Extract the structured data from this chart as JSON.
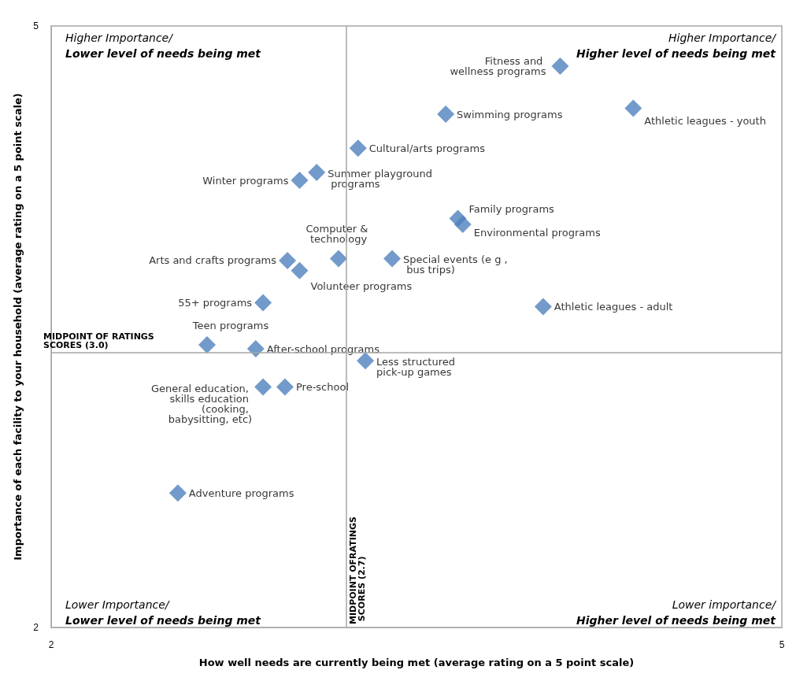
{
  "chart_data": {
    "type": "scatter",
    "xlabel": "How well needs are currently being met (average rating on a 5 point scale)",
    "ylabel": "Importance of each facility to your household (average rating on a 5 point scale)",
    "xlim": [
      2,
      5
    ],
    "xticks": [
      2,
      5
    ],
    "ylim": [
      2,
      5
    ],
    "yticks": [
      2,
      5
    ],
    "grid": false,
    "marker": "diamond",
    "color": "#4f81bd",
    "x": [
      4.09,
      3.62,
      4.39,
      3.26,
      3.09,
      3.02,
      3.67,
      3.69,
      3.18,
      3.4,
      2.97,
      3.02,
      2.87,
      4.02,
      2.64,
      2.84,
      3.29,
      2.87,
      2.96,
      2.52
    ],
    "values": [
      4.8,
      4.56,
      4.59,
      4.39,
      4.27,
      4.23,
      4.04,
      4.01,
      3.84,
      3.84,
      3.83,
      3.78,
      3.62,
      3.6,
      3.41,
      3.39,
      3.33,
      3.2,
      3.2,
      2.67
    ],
    "ref_lines": [
      {
        "axis": "x",
        "value": 3.21,
        "label": "MIDPOINT OFRATINGS SCORES (2.7)",
        "color": "#a6a6a6"
      },
      {
        "axis": "y",
        "value": 3.37,
        "label": "MIDPOINT OF RATINGS SCORES (3.0)",
        "color": "#a6a6a6"
      }
    ],
    "annotations": [
      "Higher Importance/\nLower level of needs being met",
      "Higher Importance/\nHigher level of needs being met",
      "Lower Importance/\nLower level of needs being met",
      "Lower importance/\nHigher level of needs being met",
      {
        "text": "Fitness and wellness programs",
        "x": 4.09,
        "y": 4.8
      },
      {
        "text": "Swimming programs",
        "x": 3.62,
        "y": 4.56
      },
      {
        "text": "Athletic leagues - youth",
        "x": 4.39,
        "y": 4.59
      },
      {
        "text": "Cultural/arts programs",
        "x": 3.26,
        "y": 4.39
      },
      {
        "text": "Summer playground programs",
        "x": 3.09,
        "y": 4.27
      },
      {
        "text": "Winter programs",
        "x": 3.02,
        "y": 4.23
      },
      {
        "text": "Family programs",
        "x": 3.67,
        "y": 4.04
      },
      {
        "text": "Environmental programs",
        "x": 3.69,
        "y": 4.01
      },
      {
        "text": "Computer & technology",
        "x": 3.18,
        "y": 3.84
      },
      {
        "text": "Special events (e g , bus trips)",
        "x": 3.4,
        "y": 3.84
      },
      {
        "text": "Arts and crafts programs",
        "x": 2.97,
        "y": 3.83
      },
      {
        "text": "Volunteer programs",
        "x": 3.02,
        "y": 3.78
      },
      {
        "text": "55+ programs",
        "x": 2.87,
        "y": 3.62
      },
      {
        "text": "Athletic leagues - adult",
        "x": 4.02,
        "y": 3.6
      },
      {
        "text": "Teen programs",
        "x": 2.64,
        "y": 3.41
      },
      {
        "text": "After-school programs",
        "x": 2.84,
        "y": 3.39
      },
      {
        "text": "Less structured pick-up games",
        "x": 3.29,
        "y": 3.33
      },
      {
        "text": "General education, skills education (cooking, babysitting, etc)",
        "x": 2.87,
        "y": 3.2
      },
      {
        "text": "Pre-school",
        "x": 2.96,
        "y": 3.2
      },
      {
        "text": "Adventure programs",
        "x": 2.52,
        "y": 2.67
      }
    ]
  }
}
